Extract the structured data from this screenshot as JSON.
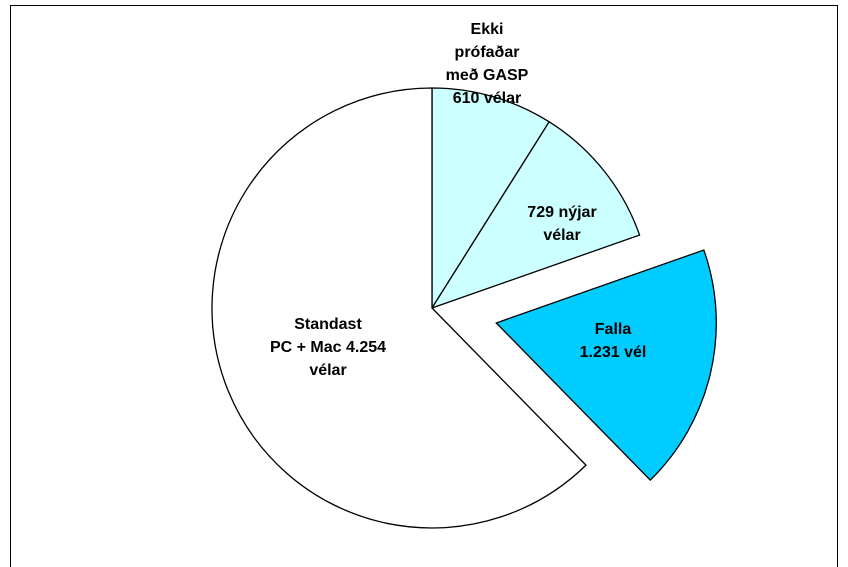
{
  "chart_data": {
    "type": "pie",
    "labels": [
      [
        "Ekki",
        "prófaðar",
        "með GASP",
        "610 vélar"
      ],
      [
        "729 nýjar",
        "vélar"
      ],
      [
        "Falla",
        "1.231 vél"
      ],
      [
        "Standast",
        "PC + Mac 4.254",
        "vélar"
      ]
    ],
    "values": [
      610,
      729,
      1231,
      4254
    ],
    "colors": [
      "#ccffff",
      "#ccffff",
      "#00ccff",
      "#ffffff"
    ]
  }
}
